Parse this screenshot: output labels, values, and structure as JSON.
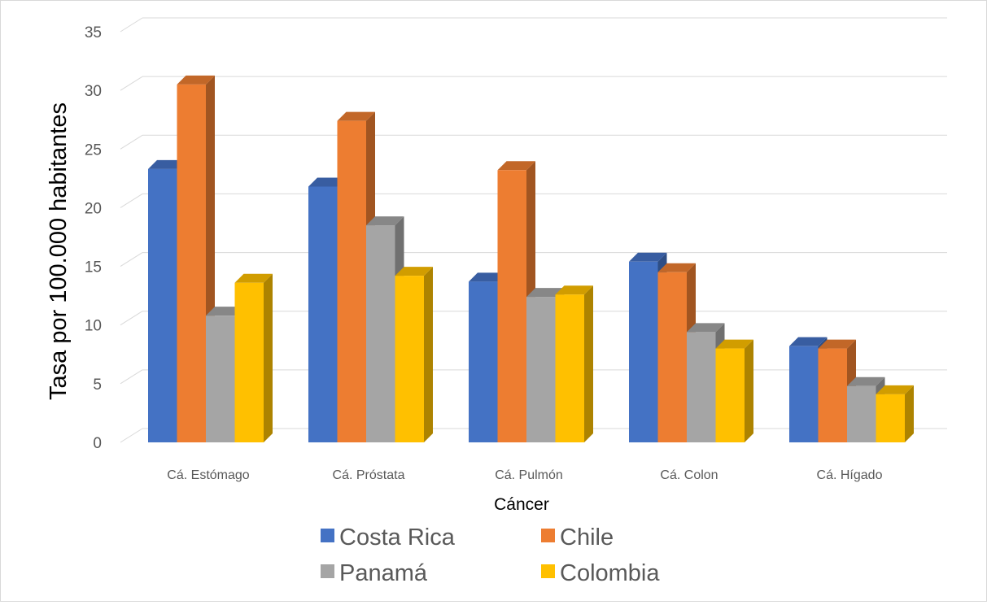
{
  "chart_data": {
    "type": "bar",
    "title": "",
    "xlabel": "Cáncer",
    "ylabel": "Tasa por 100.000 habitantes",
    "categories": [
      "Cá. Estómago",
      "Cá. Próstata",
      "Cá. Pulmón",
      "Cá. Colon",
      "Cá. Hígado"
    ],
    "series": [
      {
        "name": "Costa Rica",
        "color": "#4472C4",
        "values": [
          23.3,
          21.8,
          13.7,
          15.4,
          8.2
        ]
      },
      {
        "name": "Chile",
        "color": "#ED7D31",
        "values": [
          30.5,
          27.4,
          23.2,
          14.5,
          8.0
        ]
      },
      {
        "name": "Panamá",
        "color": "#A5A5A5",
        "values": [
          10.8,
          18.5,
          12.4,
          9.4,
          4.8
        ]
      },
      {
        "name": "Colombia",
        "color": "#FFC000",
        "values": [
          13.6,
          14.2,
          12.6,
          8.0,
          4.1
        ]
      }
    ],
    "yticks": [
      0,
      5,
      10,
      15,
      20,
      25,
      30,
      35
    ],
    "ylim": [
      0,
      35
    ],
    "grid": true,
    "legend_position": "bottom",
    "style": "3d-clustered-column"
  }
}
